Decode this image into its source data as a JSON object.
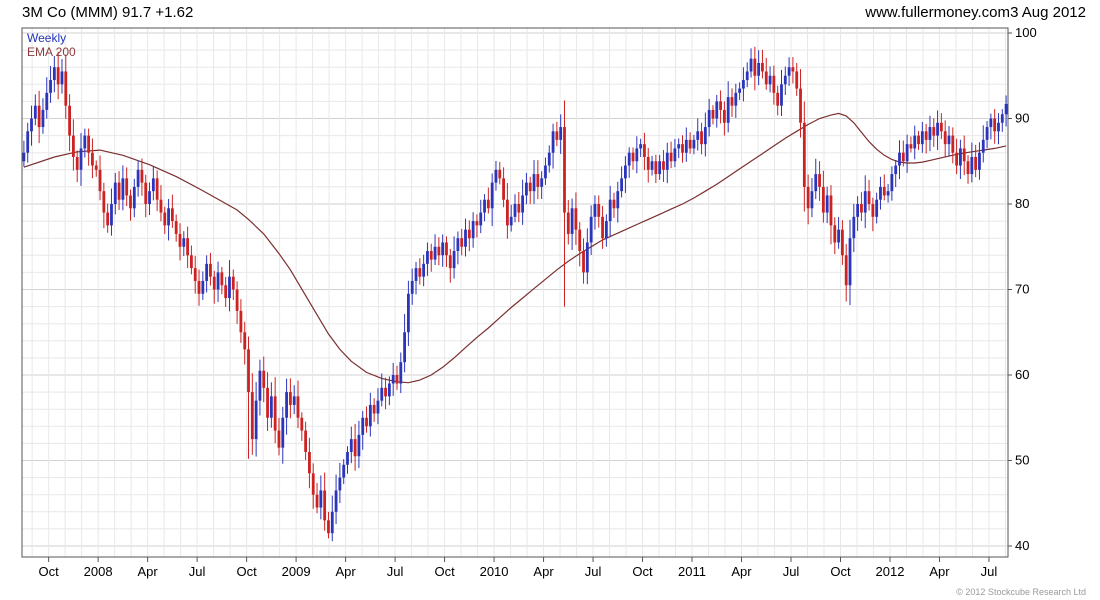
{
  "header": {
    "title": "3M Co (MMM) 91.7 +1.62",
    "website": "www.fullermoney.com",
    "date": "3 Aug 2012"
  },
  "legend": {
    "timeframe": "Weekly",
    "overlay": "EMA 200"
  },
  "footer": {
    "copyright": "© 2012 Stockcube Research Ltd"
  },
  "chart_data": {
    "type": "candlestick",
    "title": "3M Co (MMM) weekly price with 200-period EMA",
    "symbol": "MMM",
    "last_price": 91.7,
    "change": "+1.62",
    "ylim": [
      40,
      100
    ],
    "y_ticks": [
      100,
      90,
      80,
      70,
      60,
      50,
      40
    ],
    "grid": true,
    "legend_position": "top-left",
    "x_tick_labels": [
      "Oct",
      "2008",
      "Apr",
      "Jul",
      "Oct",
      "2009",
      "Apr",
      "Jul",
      "Oct",
      "2010",
      "Apr",
      "Jul",
      "Oct",
      "2011",
      "Apr",
      "Jul",
      "Oct",
      "2012",
      "Apr",
      "Jul"
    ],
    "x_tick_weeks": [
      7,
      20,
      33,
      46,
      59,
      72,
      85,
      98,
      111,
      124,
      137,
      150,
      163,
      176,
      189,
      202,
      215,
      228,
      241,
      254
    ],
    "first_open": 85.0,
    "weekly_closes": [
      86.0,
      88.5,
      90.0,
      91.5,
      89.0,
      91.0,
      93.0,
      94.5,
      96.0,
      94.0,
      95.5,
      91.5,
      88.0,
      85.5,
      84.0,
      86.5,
      88.0,
      86.0,
      84.5,
      84.0,
      81.5,
      79.0,
      77.5,
      80.0,
      82.5,
      80.5,
      83.0,
      81.0,
      79.5,
      82.0,
      84.0,
      82.5,
      80.0,
      81.5,
      83.0,
      80.5,
      79.0,
      77.5,
      79.5,
      78.0,
      76.5,
      75.0,
      76.0,
      74.0,
      72.5,
      71.0,
      69.5,
      71.0,
      73.0,
      71.5,
      70.0,
      72.0,
      70.5,
      69.0,
      71.5,
      70.0,
      67.5,
      65.0,
      63.0,
      58.0,
      52.5,
      57.0,
      60.5,
      58.5,
      55.0,
      57.5,
      53.5,
      51.5,
      55.0,
      58.0,
      56.5,
      57.5,
      55.0,
      53.5,
      51.0,
      48.5,
      46.0,
      44.5,
      46.5,
      43.0,
      41.5,
      44.0,
      46.5,
      48.0,
      49.5,
      51.0,
      52.5,
      50.5,
      53.0,
      55.0,
      54.0,
      56.5,
      55.5,
      57.0,
      58.5,
      57.5,
      59.0,
      60.0,
      59.0,
      61.5,
      65.0,
      69.5,
      71.0,
      72.5,
      71.5,
      73.0,
      74.5,
      73.5,
      75.0,
      74.0,
      75.5,
      74.0,
      72.5,
      74.5,
      76.0,
      75.0,
      77.0,
      76.0,
      78.0,
      77.5,
      79.0,
      80.5,
      79.5,
      82.5,
      84.0,
      83.0,
      80.5,
      77.5,
      78.5,
      80.0,
      79.0,
      81.0,
      82.5,
      81.5,
      83.5,
      82.0,
      83.0,
      84.5,
      86.0,
      88.5,
      87.5,
      89.0,
      79.0,
      76.5,
      79.5,
      77.0,
      74.5,
      72.0,
      75.5,
      78.5,
      80.0,
      78.5,
      76.0,
      78.0,
      80.5,
      79.5,
      81.5,
      83.0,
      84.5,
      86.0,
      85.0,
      86.5,
      87.0,
      85.5,
      84.0,
      85.0,
      83.5,
      85.0,
      84.0,
      86.0,
      85.0,
      86.5,
      87.0,
      86.0,
      87.5,
      86.5,
      87.5,
      88.5,
      87.0,
      89.0,
      91.0,
      90.0,
      92.0,
      91.0,
      89.5,
      92.5,
      91.5,
      93.0,
      93.5,
      94.5,
      95.5,
      97.0,
      95.0,
      96.5,
      95.5,
      94.0,
      95.0,
      93.0,
      91.5,
      94.0,
      95.0,
      96.0,
      95.5,
      93.5,
      89.5,
      82.0,
      79.5,
      81.5,
      83.5,
      82.0,
      79.0,
      81.0,
      77.5,
      75.5,
      77.0,
      74.0,
      70.5,
      76.0,
      78.5,
      80.0,
      79.0,
      81.5,
      80.0,
      78.5,
      80.5,
      82.0,
      81.0,
      81.5,
      83.5,
      84.5,
      86.0,
      85.0,
      87.0,
      86.5,
      88.0,
      87.0,
      88.5,
      87.5,
      89.0,
      88.0,
      89.5,
      88.5,
      87.0,
      88.0,
      86.0,
      84.5,
      86.5,
      85.0,
      83.5,
      85.5,
      84.0,
      86.0,
      87.5,
      89.0,
      90.0,
      88.5,
      89.5,
      90.5,
      91.7
    ],
    "wick_overrides": {
      "8": {
        "high": 97.3
      },
      "59": {
        "low": 50.2,
        "high": 64.5
      },
      "67": {
        "low": 50.6
      },
      "80": {
        "low": 40.9
      },
      "142": {
        "low": 68.0
      },
      "191": {
        "high": 98.2
      },
      "216": {
        "low": 68.6
      }
    },
    "ema200": [
      [
        0,
        84.3
      ],
      [
        8,
        85.5
      ],
      [
        14,
        86.1
      ],
      [
        20,
        86.3
      ],
      [
        26,
        85.7
      ],
      [
        33,
        84.6
      ],
      [
        40,
        83.2
      ],
      [
        46,
        81.8
      ],
      [
        52,
        80.3
      ],
      [
        56,
        79.3
      ],
      [
        59,
        78.2
      ],
      [
        63,
        76.5
      ],
      [
        67,
        74.2
      ],
      [
        70,
        72.3
      ],
      [
        72,
        70.8
      ],
      [
        76,
        67.8
      ],
      [
        80,
        64.8
      ],
      [
        83,
        63.0
      ],
      [
        86,
        61.6
      ],
      [
        90,
        60.3
      ],
      [
        94,
        59.6
      ],
      [
        98,
        59.2
      ],
      [
        101,
        59.1
      ],
      [
        104,
        59.4
      ],
      [
        107,
        60.0
      ],
      [
        110,
        60.9
      ],
      [
        113,
        62.0
      ],
      [
        116,
        63.2
      ],
      [
        119,
        64.4
      ],
      [
        122,
        65.5
      ],
      [
        125,
        66.7
      ],
      [
        128,
        67.9
      ],
      [
        131,
        69.0
      ],
      [
        134,
        70.1
      ],
      [
        137,
        71.2
      ],
      [
        140,
        72.3
      ],
      [
        143,
        73.3
      ],
      [
        146,
        74.2
      ],
      [
        149,
        75.0
      ],
      [
        152,
        75.8
      ],
      [
        155,
        76.4
      ],
      [
        158,
        77.0
      ],
      [
        161,
        77.6
      ],
      [
        164,
        78.2
      ],
      [
        167,
        78.8
      ],
      [
        170,
        79.4
      ],
      [
        173,
        80.0
      ],
      [
        176,
        80.7
      ],
      [
        179,
        81.5
      ],
      [
        182,
        82.3
      ],
      [
        185,
        83.2
      ],
      [
        188,
        84.1
      ],
      [
        191,
        85.0
      ],
      [
        194,
        85.9
      ],
      [
        197,
        86.8
      ],
      [
        200,
        87.7
      ],
      [
        203,
        88.5
      ],
      [
        206,
        89.3
      ],
      [
        209,
        90.0
      ],
      [
        212,
        90.4
      ],
      [
        214,
        90.6
      ],
      [
        216,
        90.3
      ],
      [
        218,
        89.5
      ],
      [
        220,
        88.4
      ],
      [
        222,
        87.3
      ],
      [
        224,
        86.4
      ],
      [
        226,
        85.7
      ],
      [
        228,
        85.2
      ],
      [
        230,
        84.9
      ],
      [
        232,
        84.8
      ],
      [
        234,
        84.8
      ],
      [
        236,
        84.9
      ],
      [
        238,
        85.1
      ],
      [
        240,
        85.3
      ],
      [
        243,
        85.6
      ],
      [
        246,
        85.9
      ],
      [
        249,
        86.1
      ],
      [
        252,
        86.3
      ],
      [
        255,
        86.5
      ],
      [
        258,
        86.8
      ]
    ],
    "colors": {
      "up": "#2b35bb",
      "down": "#cc2222",
      "ema": "#7b2f2f",
      "grid_minor": "#e8e8e8",
      "grid_major": "#d2d2d2",
      "frame": "#555555",
      "axis_text": "#000000"
    }
  }
}
